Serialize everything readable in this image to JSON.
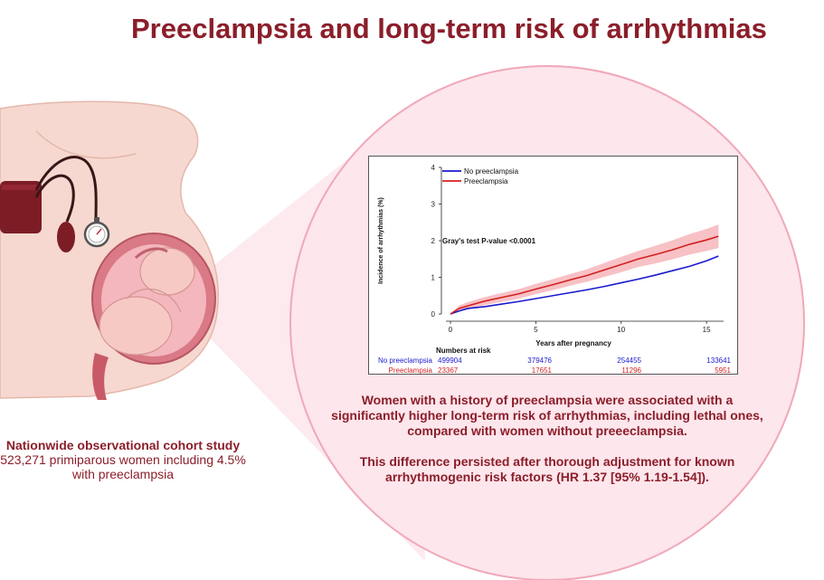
{
  "title": "Preeclampsia and long-term risk of arrhythmias",
  "study": {
    "heading": "Nationwide observational cohort study",
    "line1": "523,271 primiparous women including 4.5%",
    "line2": "with preeclampsia"
  },
  "findings": {
    "paragraph1": "Women with a history of preeclampsia were associated with a significantly higher long-term risk of arrhythmias, including lethal ones, compared with women without preeeclampsia.",
    "paragraph2": "This difference persisted after thorough adjustment for known arrhythmogenic risk factors (HR 1.37 [95% 1.19-1.54])."
  },
  "numbers_at_risk": {
    "title": "Numbers at risk",
    "rows": [
      {
        "label": "No preeclampsia",
        "values": [
          "499904",
          "379476",
          "254455",
          "133641"
        ],
        "color": "#1a1acd"
      },
      {
        "label": "Preeclampsia",
        "values": [
          "23367",
          "17651",
          "11296",
          "5951"
        ],
        "color": "#d42020"
      }
    ]
  },
  "colors": {
    "brand": "#8b1e2a",
    "circle_fill": "#fde6ec",
    "circle_stroke": "#f0a8b8",
    "no_preeclampsia": "#1a1acd",
    "preeclampsia": "#d42020",
    "ci_band": "#f4a6ac"
  },
  "chart_data": {
    "type": "line",
    "xlabel": "Years after pregnancy",
    "ylabel": "Incidence of arrhythmias (%)",
    "xlim": [
      0,
      16
    ],
    "ylim": [
      0,
      4
    ],
    "xticks": [
      0,
      5,
      10,
      15
    ],
    "yticks": [
      0,
      1,
      2,
      3,
      4
    ],
    "annotation": "Gray's test P-value <0.0001",
    "legend_position": "top-left",
    "series": [
      {
        "name": "No preeclampsia",
        "color": "#1a1acd",
        "x": [
          0,
          0.5,
          1,
          2,
          3,
          4,
          5,
          6,
          7,
          8,
          9,
          10,
          11,
          12,
          13,
          14,
          15,
          15.7
        ],
        "y": [
          0,
          0.08,
          0.15,
          0.2,
          0.27,
          0.34,
          0.42,
          0.5,
          0.58,
          0.66,
          0.75,
          0.85,
          0.95,
          1.06,
          1.18,
          1.3,
          1.45,
          1.58
        ]
      },
      {
        "name": "Preeclampsia",
        "color": "#d42020",
        "x": [
          0,
          0.5,
          1,
          2,
          3,
          4,
          5,
          6,
          7,
          8,
          9,
          10,
          11,
          12,
          13,
          14,
          15,
          15.7
        ],
        "y": [
          0,
          0.15,
          0.22,
          0.35,
          0.45,
          0.55,
          0.68,
          0.8,
          0.93,
          1.05,
          1.2,
          1.35,
          1.5,
          1.62,
          1.75,
          1.9,
          2.02,
          2.12
        ],
        "ci_low": [
          0,
          0.07,
          0.12,
          0.24,
          0.33,
          0.42,
          0.54,
          0.65,
          0.77,
          0.88,
          1.01,
          1.14,
          1.28,
          1.38,
          1.49,
          1.62,
          1.72,
          1.8
        ],
        "ci_high": [
          0,
          0.23,
          0.32,
          0.46,
          0.57,
          0.68,
          0.82,
          0.95,
          1.09,
          1.22,
          1.39,
          1.56,
          1.72,
          1.86,
          2.01,
          2.18,
          2.32,
          2.44
        ]
      }
    ]
  }
}
